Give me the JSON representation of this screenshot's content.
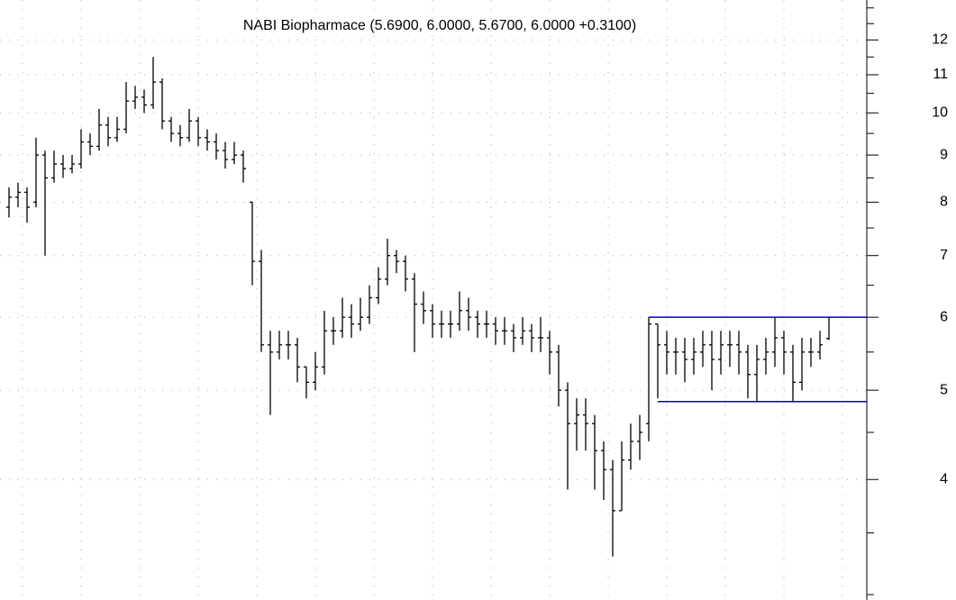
{
  "chart_data": {
    "type": "ohlc",
    "subtitle": "NABI Biopharmace (5.6900, 6.0000, 5.6700, 6.0000 +0.3100)",
    "log_scale": true,
    "grid": true,
    "color": "#000000",
    "ylim": [
      3,
      13.2
    ],
    "yticks": [
      4,
      5,
      6,
      7,
      8,
      9,
      10,
      11,
      12
    ],
    "yminorticks": [
      3,
      3.5,
      4.5,
      5.5,
      6.5,
      7.5,
      8.5,
      9.5,
      10.5,
      11.5,
      12.5,
      13
    ],
    "open": [
      7.9,
      8.1,
      8.2,
      8.0,
      9.0,
      8.5,
      8.8,
      8.7,
      8.8,
      9.3,
      9.2,
      9.7,
      9.4,
      9.6,
      10.3,
      10.4,
      10.2,
      10.8,
      9.8,
      9.5,
      9.4,
      9.8,
      9.4,
      9.3,
      9.1,
      8.9,
      9.0,
      8.0,
      6.9,
      5.6,
      5.5,
      5.6,
      5.6,
      5.3,
      5.1,
      5.3,
      5.8,
      5.8,
      6.0,
      5.9,
      6.0,
      6.3,
      6.6,
      7.0,
      6.9,
      6.6,
      6.2,
      6.1,
      5.9,
      5.9,
      5.9,
      6.1,
      6.0,
      5.9,
      5.9,
      5.8,
      5.8,
      5.7,
      5.8,
      5.7,
      5.7,
      5.5,
      5.0,
      4.6,
      4.7,
      4.6,
      4.3,
      4.1,
      3.7,
      4.2,
      4.4,
      4.6,
      5.9,
      5.6,
      5.5,
      5.5,
      5.4,
      5.5,
      5.6,
      5.4,
      5.6,
      5.6,
      5.5,
      5.2,
      5.4,
      5.5,
      5.7,
      5.5,
      5.1,
      5.5,
      5.5,
      5.69
    ],
    "high": [
      8.3,
      8.4,
      8.3,
      9.4,
      9.1,
      9.1,
      9.0,
      9.0,
      9.6,
      9.5,
      10.1,
      9.9,
      9.9,
      10.8,
      10.7,
      10.6,
      11.5,
      10.9,
      9.9,
      9.7,
      10.1,
      9.9,
      9.6,
      9.5,
      9.3,
      9.3,
      9.1,
      8.0,
      7.1,
      5.8,
      5.8,
      5.8,
      5.7,
      5.3,
      5.5,
      6.1,
      6.0,
      6.3,
      6.2,
      6.3,
      6.5,
      6.8,
      7.3,
      7.1,
      7.0,
      6.7,
      6.4,
      6.2,
      6.1,
      6.1,
      6.4,
      6.3,
      6.1,
      6.1,
      6.0,
      6.0,
      5.9,
      6.0,
      5.9,
      6.0,
      5.8,
      5.6,
      5.1,
      4.9,
      4.9,
      4.7,
      4.4,
      4.2,
      4.4,
      4.6,
      4.7,
      6.0,
      5.9,
      5.8,
      5.7,
      5.7,
      5.7,
      5.8,
      5.8,
      5.8,
      5.8,
      5.8,
      5.6,
      5.6,
      5.7,
      6.0,
      5.8,
      5.6,
      5.7,
      5.7,
      5.8,
      6.0
    ],
    "low": [
      7.7,
      7.9,
      7.6,
      7.9,
      7.0,
      8.4,
      8.5,
      8.6,
      8.7,
      9.0,
      9.1,
      9.2,
      9.3,
      9.5,
      10.1,
      10.0,
      10.1,
      9.6,
      9.3,
      9.2,
      9.3,
      9.2,
      9.1,
      8.9,
      8.7,
      8.8,
      8.4,
      6.5,
      5.5,
      4.7,
      5.4,
      5.4,
      5.1,
      4.9,
      5.0,
      5.2,
      5.6,
      5.7,
      5.7,
      5.8,
      5.9,
      6.2,
      6.5,
      6.7,
      6.4,
      5.5,
      5.9,
      5.7,
      5.7,
      5.7,
      5.8,
      5.8,
      5.7,
      5.7,
      5.6,
      5.6,
      5.5,
      5.6,
      5.5,
      5.5,
      5.2,
      4.8,
      3.9,
      4.3,
      4.3,
      3.9,
      3.8,
      3.3,
      3.7,
      4.1,
      4.2,
      4.4,
      4.9,
      5.2,
      5.2,
      5.1,
      5.2,
      5.3,
      5.0,
      5.2,
      5.3,
      5.2,
      4.9,
      4.85,
      5.2,
      5.3,
      5.2,
      4.85,
      5.0,
      5.3,
      5.4,
      5.67
    ],
    "close": [
      8.1,
      8.2,
      7.9,
      9.0,
      8.5,
      8.8,
      8.7,
      8.8,
      9.3,
      9.2,
      9.7,
      9.4,
      9.6,
      10.3,
      10.4,
      10.2,
      10.8,
      9.8,
      9.5,
      9.4,
      9.8,
      9.4,
      9.3,
      9.1,
      8.9,
      9.0,
      8.7,
      6.9,
      5.6,
      5.5,
      5.6,
      5.6,
      5.3,
      5.1,
      5.3,
      5.8,
      5.8,
      6.0,
      5.9,
      6.0,
      6.3,
      6.6,
      7.0,
      6.9,
      6.6,
      6.2,
      6.1,
      5.9,
      5.9,
      5.9,
      6.1,
      6.0,
      5.9,
      5.9,
      5.8,
      5.8,
      5.7,
      5.8,
      5.7,
      5.7,
      5.5,
      5.0,
      4.6,
      4.7,
      4.6,
      4.3,
      4.1,
      3.7,
      4.2,
      4.4,
      4.5,
      5.9,
      5.6,
      5.5,
      5.5,
      5.4,
      5.5,
      5.6,
      5.4,
      5.6,
      5.6,
      5.5,
      5.2,
      5.4,
      5.5,
      5.7,
      5.5,
      5.1,
      5.5,
      5.5,
      5.6,
      6.0
    ],
    "levels": [
      {
        "value": 6.0,
        "start": 71,
        "color": "#0000cc"
      },
      {
        "value": 4.86,
        "start": 72,
        "color": "#0000cc"
      }
    ]
  }
}
